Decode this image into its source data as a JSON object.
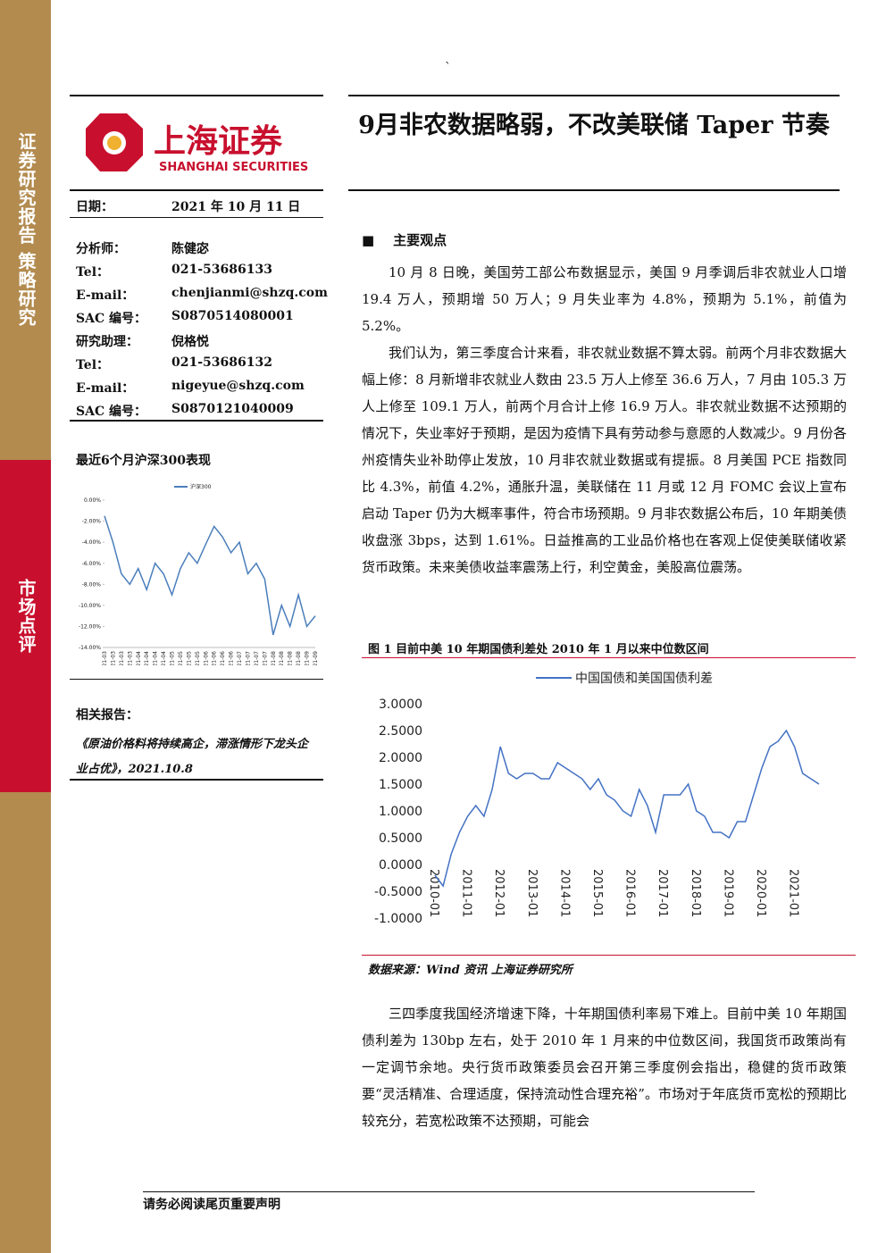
{
  "sidebar": {
    "top": "证券研究报告 策略研究",
    "bottom": "市场点评"
  },
  "header_mark": "`",
  "logo": {
    "cn": "上海证券",
    "en": "SHANGHAI SECURITIES"
  },
  "title": "9月非农数据略弱，不改美联储 Taper 节奏",
  "info": [
    {
      "label": "日期：",
      "value": "2021 年 10 月 11 日"
    },
    {
      "label": "分析师：",
      "value": "陈健宓"
    },
    {
      "label": "Tel：",
      "value": "021-53686133"
    },
    {
      "label": "E-mail：",
      "value": "chenjianmi@shzq.com"
    },
    {
      "label": "SAC 编号：",
      "value": "S0870514080001"
    },
    {
      "label": "研究助理：",
      "value": "倪格悦"
    },
    {
      "label": "Tel：",
      "value": "021-53686132"
    },
    {
      "label": "E-mail：",
      "value": "nigeyue@shzq.com"
    },
    {
      "label": "SAC 编号：",
      "value": "S0870121040009"
    }
  ],
  "related": {
    "heading": "相关报告：",
    "title": "《原油价格料将持续高企，滞涨情形下龙头企业占优》，2021.10.8"
  },
  "section": "主要观点",
  "paragraphs": [
    "10 月 8 日晚，美国劳工部公布数据显示，美国 9 月季调后非农就业人口增 19.4 万人，预期增 50 万人；9 月失业率为 4.8%，预期为 5.1%，前值为 5.2%。",
    "我们认为，第三季度合计来看，非农就业数据不算太弱。前两个月非农数据大幅上修：8 月新增非农就业人数由 23.5 万人上修至 36.6 万人，7 月由 105.3 万人上修至 109.1 万人，前两个月合计上修 16.9 万人。非农就业数据不达预期的情况下，失业率好于预期，是因为疫情下具有劳动参与意愿的人数减少。9 月份各州疫情失业补助停止发放，10 月非农就业数据或有提振。8 月美国 PCE 指数同比 4.3%，前值 4.2%，通胀升温，美联储在 11 月或 12 月 FOMC 会议上宣布启动 Taper 仍为大概率事件，符合市场预期。9 月非农数据公布后，10 年期美债收盘涨 3bps，达到 1.61%。日益推高的工业品价格也在客观上促使美联储收紧货币政策。未来美债收益率震荡上行，利空黄金，美股高位震荡。"
  ],
  "after": "三四季度我国经济增速下降，十年期国债利率易下难上。目前中美 10 年期国债利差为 130bp 左右，处于 2010 年 1 月来的中位数区间，我国货币政策尚有一定调节余地。央行货币政策委员会召开第三季度例会指出，稳健的货币政策要“灵活精准、合理适度，保持流动性合理充裕”。市场对于年底货币宽松的预期比较充分，若宽松政策不达预期，可能会",
  "footer": "请务必阅读尾页重要声明",
  "chart_data": [
    {
      "type": "line",
      "title": "最近6个月沪深300表现",
      "categories": [
        "21-03",
        "21-03",
        "21-03",
        "21-03",
        "21-04",
        "21-04",
        "21-04",
        "21-04",
        "21-05",
        "21-05",
        "21-05",
        "21-05",
        "21-06",
        "21-06",
        "21-06",
        "21-06",
        "21-07",
        "21-07",
        "21-07",
        "21-07",
        "21-08",
        "21-08",
        "21-08",
        "21-08",
        "21-09",
        "21-09"
      ],
      "series": [
        {
          "name": "沪深300",
          "color": "#4a7ebb",
          "values": [
            -1.5,
            -4,
            -7,
            -8,
            -6.5,
            -8.5,
            -6,
            -7,
            -9,
            -6.5,
            -5,
            -6,
            -4.2,
            -2.5,
            -3.5,
            -5,
            -4,
            -7,
            -6,
            -7.5,
            -12.8,
            -10,
            -12,
            -9,
            -12,
            -11
          ]
        }
      ],
      "ylim": [
        -14,
        0
      ],
      "yticks": [
        {
          "value": 0,
          "label": "0.00%"
        },
        {
          "value": -2,
          "label": "-2.00%"
        },
        {
          "value": -4,
          "label": "-4.00%"
        },
        {
          "value": -6,
          "label": "-6.00%"
        },
        {
          "value": -8,
          "label": "-8.00%"
        },
        {
          "value": -10,
          "label": "-10.00%"
        },
        {
          "value": -12,
          "label": "-12.00%"
        },
        {
          "value": -14,
          "label": "-14.00%"
        }
      ]
    },
    {
      "type": "line",
      "title": "图 1 目前中美 10 年期国债利差处 2010 年 1 月以来中位数区间",
      "source": "数据来源：Wind 资讯 上海证券研究所",
      "x": [
        "2010-01",
        "2010-04",
        "2010-07",
        "2010-10",
        "2011-01",
        "2011-04",
        "2011-07",
        "2011-10",
        "2012-01",
        "2012-04",
        "2012-07",
        "2012-10",
        "2013-01",
        "2013-04",
        "2013-07",
        "2013-10",
        "2014-01",
        "2014-04",
        "2014-07",
        "2014-10",
        "2015-01",
        "2015-04",
        "2015-07",
        "2015-10",
        "2016-01",
        "2016-04",
        "2016-07",
        "2016-10",
        "2017-01",
        "2017-04",
        "2017-07",
        "2017-10",
        "2018-01",
        "2018-04",
        "2018-07",
        "2018-10",
        "2019-01",
        "2019-04",
        "2019-07",
        "2019-10",
        "2020-01",
        "2020-04",
        "2020-07",
        "2020-10",
        "2021-01",
        "2021-04",
        "2021-07",
        "2021-10"
      ],
      "series": [
        {
          "name": "中国国债和美国国债利差",
          "color": "#4472c4",
          "values": [
            -0.2,
            -0.4,
            0.2,
            0.6,
            0.9,
            1.1,
            0.9,
            1.4,
            2.2,
            1.7,
            1.6,
            1.7,
            1.7,
            1.6,
            1.6,
            1.9,
            1.8,
            1.7,
            1.6,
            1.4,
            1.6,
            1.3,
            1.2,
            1.0,
            0.9,
            1.4,
            1.1,
            0.6,
            1.3,
            1.3,
            1.3,
            1.5,
            1.0,
            0.9,
            0.6,
            0.6,
            0.5,
            0.8,
            0.8,
            1.3,
            1.8,
            2.2,
            2.3,
            2.5,
            2.2,
            1.7,
            1.6,
            1.5
          ]
        }
      ],
      "xticks": [
        "2010-01",
        "2011-01",
        "2012-01",
        "2013-01",
        "2014-01",
        "2015-01",
        "2016-01",
        "2017-01",
        "2018-01",
        "2019-01",
        "2020-01",
        "2021-01"
      ],
      "ylim": [
        -1,
        3
      ],
      "yticks": [
        {
          "value": 3,
          "label": "3.0000"
        },
        {
          "value": 2.5,
          "label": "2.5000"
        },
        {
          "value": 2,
          "label": "2.0000"
        },
        {
          "value": 1.5,
          "label": "1.5000"
        },
        {
          "value": 1,
          "label": "1.0000"
        },
        {
          "value": 0.5,
          "label": "0.5000"
        },
        {
          "value": 0,
          "label": "0.0000"
        },
        {
          "value": -0.5,
          "label": "-0.5000"
        },
        {
          "value": -1,
          "label": "-1.0000"
        }
      ]
    }
  ]
}
